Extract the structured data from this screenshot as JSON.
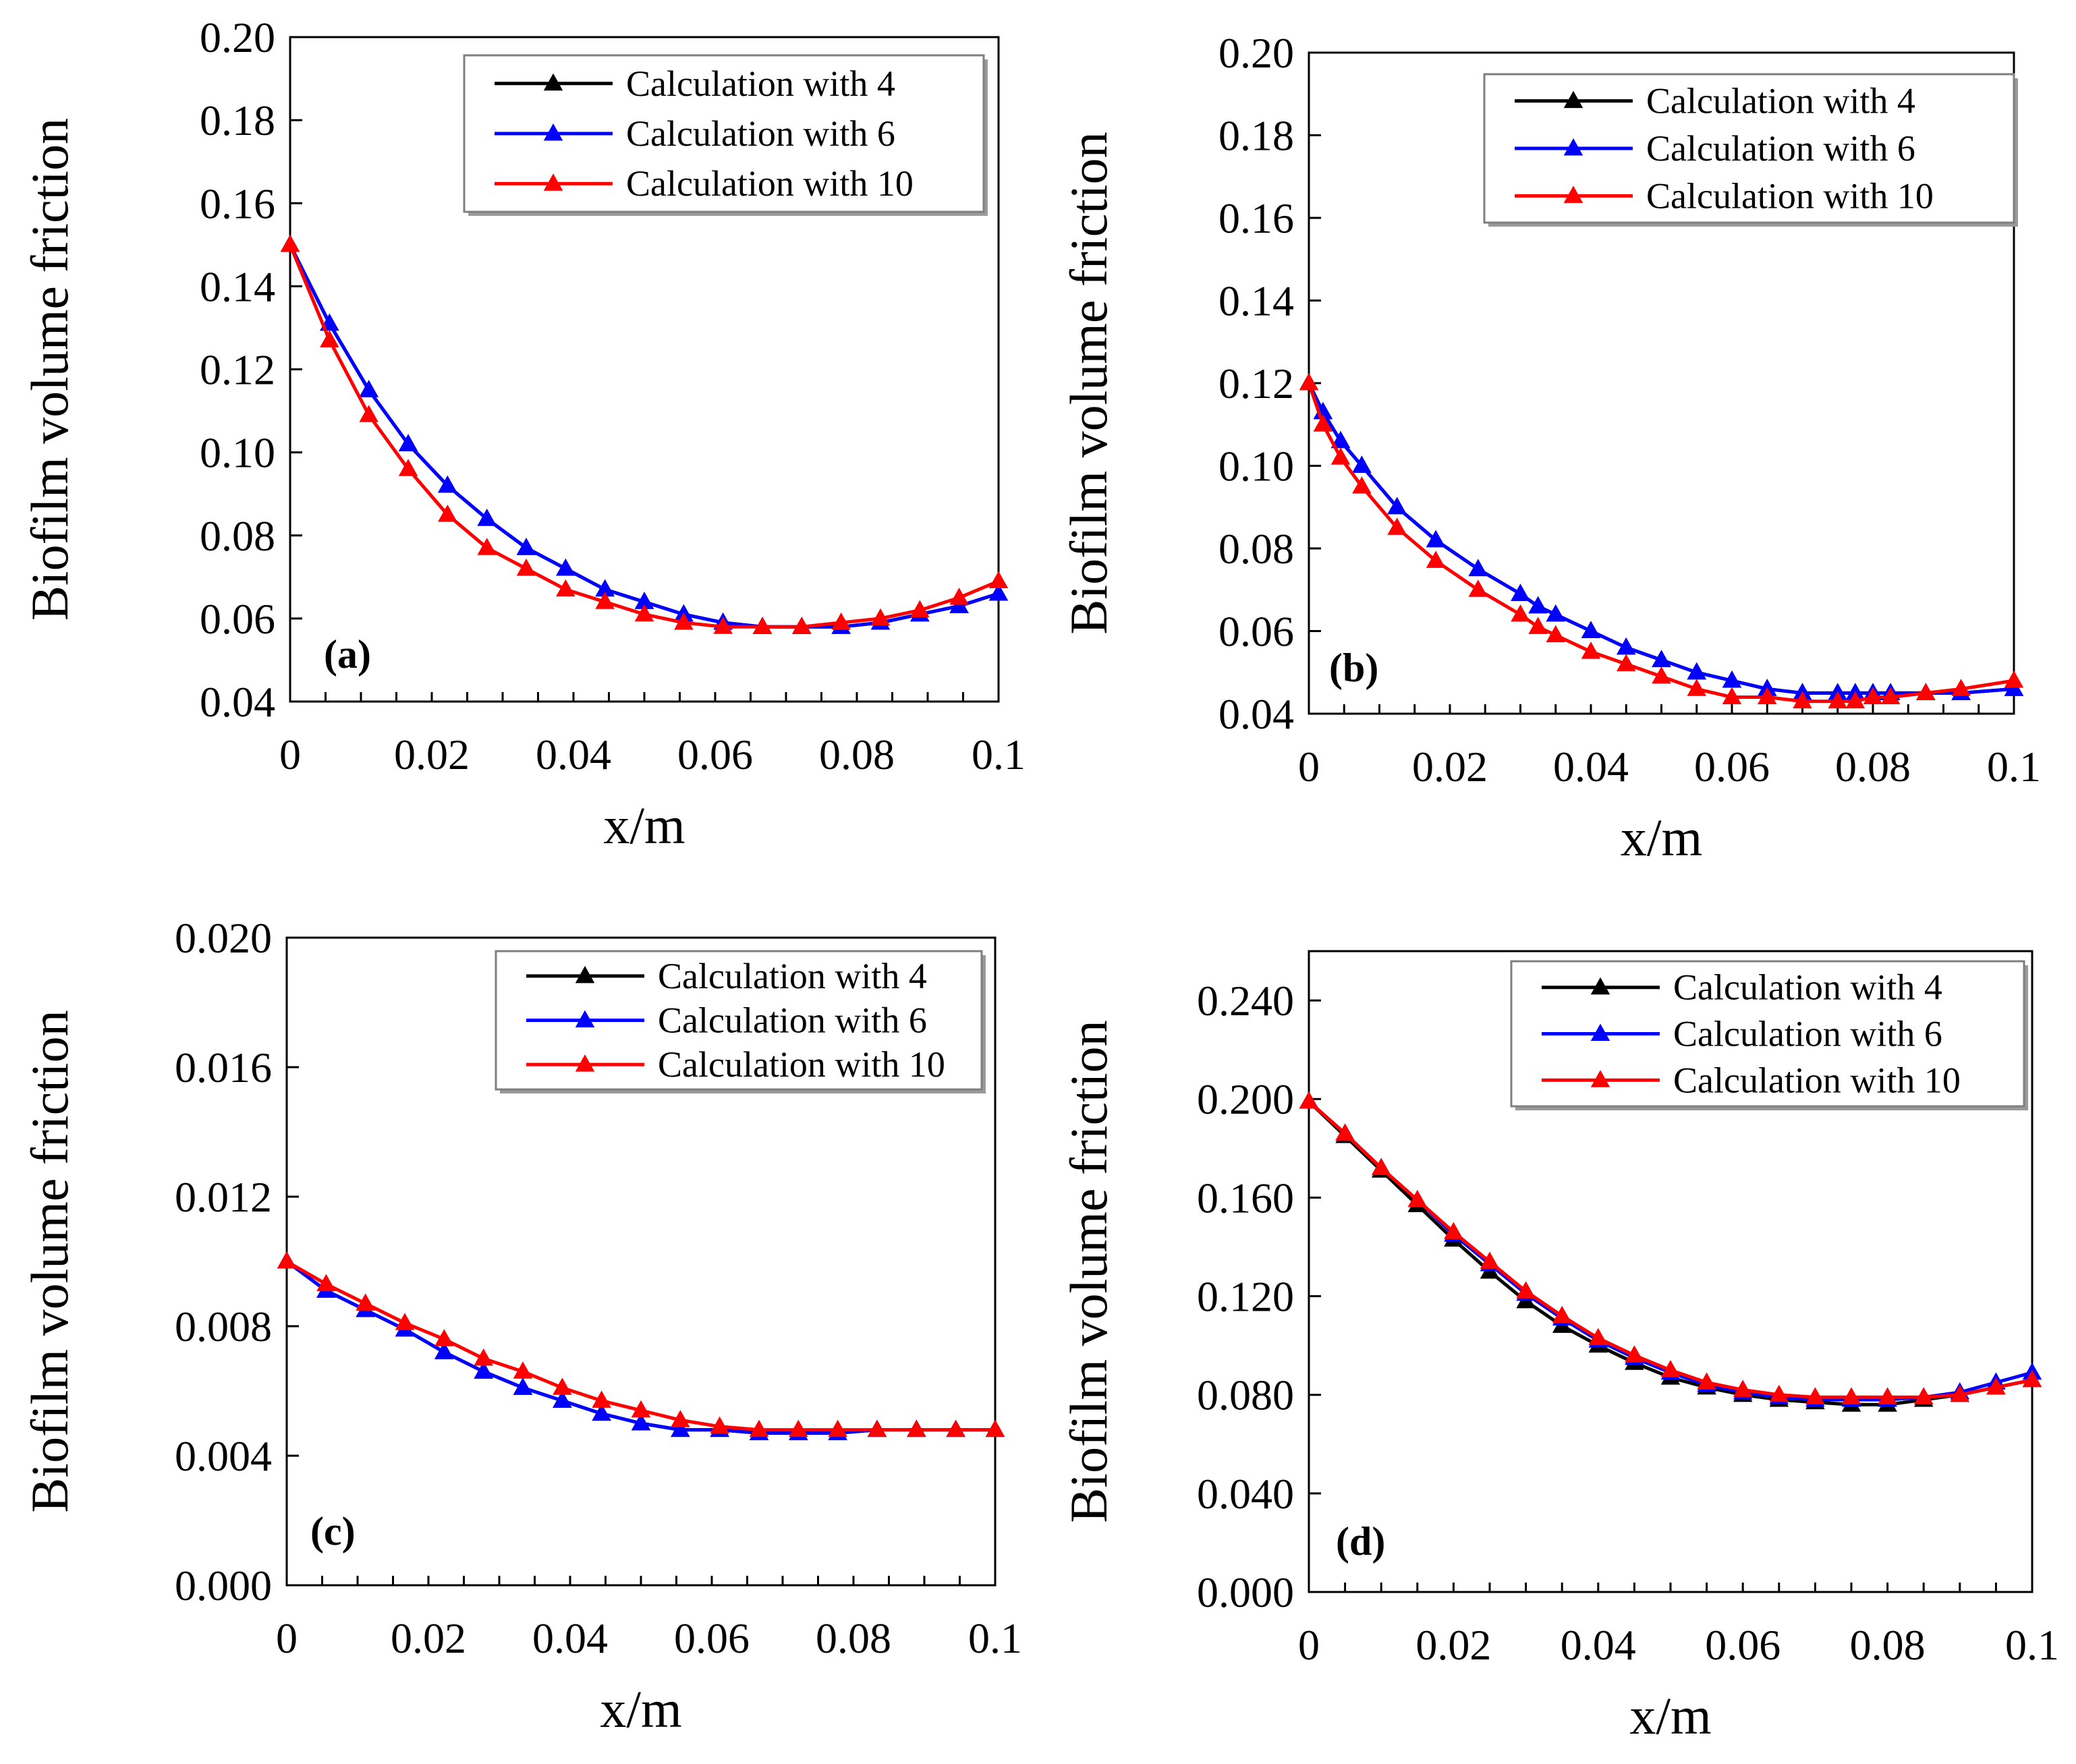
{
  "chart_data": [
    {
      "type": "line",
      "panel_label": "(a)",
      "xlabel": "x/m",
      "ylabel": "Biofilm volume friction",
      "xlim": [
        0,
        0.1
      ],
      "ylim": [
        0.04,
        0.2
      ],
      "xticks": [
        0,
        0.02,
        0.04,
        0.06,
        0.08,
        0.1
      ],
      "xtick_labels": [
        "0",
        "0.02",
        "0.04",
        "0.06",
        "0.08",
        "0.1"
      ],
      "yticks": [
        0.04,
        0.06,
        0.08,
        0.1,
        0.12,
        0.14,
        0.16,
        0.18,
        0.2
      ],
      "ytick_labels": [
        "0.04",
        "0.06",
        "0.08",
        "0.10",
        "0.12",
        "0.14",
        "0.16",
        "0.18",
        "0.20"
      ],
      "legend": "top-right",
      "series": [
        {
          "name": "Calculation with 4",
          "color": "#000000",
          "x": [
            0,
            0.00556,
            0.01111,
            0.01667,
            0.02222,
            0.02778,
            0.03333,
            0.03889,
            0.04444,
            0.05,
            0.05556,
            0.06111,
            0.06667,
            0.07222,
            0.07778,
            0.08333,
            0.08889,
            0.09444,
            0.1
          ],
          "y": [
            0.15,
            0.131,
            0.115,
            0.102,
            0.092,
            0.084,
            0.077,
            0.072,
            0.067,
            0.064,
            0.061,
            0.059,
            0.058,
            0.058,
            0.058,
            0.059,
            0.061,
            0.063,
            0.066
          ]
        },
        {
          "name": "Calculation with 6",
          "color": "#0000ff",
          "x": [
            0,
            0.00556,
            0.01111,
            0.01667,
            0.02222,
            0.02778,
            0.03333,
            0.03889,
            0.04444,
            0.05,
            0.05556,
            0.06111,
            0.06667,
            0.07222,
            0.07778,
            0.08333,
            0.08889,
            0.09444,
            0.1
          ],
          "y": [
            0.15,
            0.131,
            0.115,
            0.102,
            0.092,
            0.084,
            0.077,
            0.072,
            0.067,
            0.064,
            0.061,
            0.059,
            0.058,
            0.058,
            0.058,
            0.059,
            0.061,
            0.063,
            0.066
          ]
        },
        {
          "name": "Calculation with 10",
          "color": "#ff0000",
          "x": [
            0,
            0.00556,
            0.01111,
            0.01667,
            0.02222,
            0.02778,
            0.03333,
            0.03889,
            0.04444,
            0.05,
            0.05556,
            0.06111,
            0.06667,
            0.07222,
            0.07778,
            0.08333,
            0.08889,
            0.09444,
            0.1
          ],
          "y": [
            0.15,
            0.127,
            0.109,
            0.096,
            0.085,
            0.077,
            0.072,
            0.067,
            0.064,
            0.061,
            0.059,
            0.058,
            0.058,
            0.058,
            0.059,
            0.06,
            0.062,
            0.065,
            0.069
          ]
        }
      ]
    },
    {
      "type": "line",
      "panel_label": "(b)",
      "xlabel": "x/m",
      "ylabel": "Biofilm volume friction",
      "xlim": [
        0,
        0.1
      ],
      "ylim": [
        0.04,
        0.2
      ],
      "xticks": [
        0,
        0.02,
        0.04,
        0.06,
        0.08,
        0.1
      ],
      "xtick_labels": [
        "0",
        "0.02",
        "0.04",
        "0.06",
        "0.08",
        "0.1"
      ],
      "yticks": [
        0.04,
        0.06,
        0.08,
        0.1,
        0.12,
        0.14,
        0.16,
        0.18,
        0.2
      ],
      "ytick_labels": [
        "0.04",
        "0.06",
        "0.08",
        "0.10",
        "0.12",
        "0.14",
        "0.16",
        "0.18",
        "0.20"
      ],
      "legend": "top-right",
      "series": [
        {
          "name": "Calculation with 4",
          "color": "#000000",
          "x": [
            0,
            0.002,
            0.0045,
            0.0075,
            0.0125,
            0.018,
            0.024,
            0.03,
            0.0325,
            0.035,
            0.04,
            0.045,
            0.05,
            0.055,
            0.06,
            0.065,
            0.07,
            0.075,
            0.0775,
            0.08,
            0.0825,
            0.0875,
            0.0925,
            0.1
          ],
          "y": [
            0.12,
            0.113,
            0.106,
            0.1,
            0.09,
            0.082,
            0.075,
            0.069,
            0.066,
            0.064,
            0.06,
            0.056,
            0.053,
            0.05,
            0.048,
            0.046,
            0.045,
            0.045,
            0.045,
            0.045,
            0.045,
            0.045,
            0.045,
            0.046
          ]
        },
        {
          "name": "Calculation with 6",
          "color": "#0000ff",
          "x": [
            0,
            0.002,
            0.0045,
            0.0075,
            0.0125,
            0.018,
            0.024,
            0.03,
            0.0325,
            0.035,
            0.04,
            0.045,
            0.05,
            0.055,
            0.06,
            0.065,
            0.07,
            0.075,
            0.0775,
            0.08,
            0.0825,
            0.0875,
            0.0925,
            0.1
          ],
          "y": [
            0.12,
            0.113,
            0.106,
            0.1,
            0.09,
            0.082,
            0.075,
            0.069,
            0.066,
            0.064,
            0.06,
            0.056,
            0.053,
            0.05,
            0.048,
            0.046,
            0.045,
            0.045,
            0.045,
            0.045,
            0.045,
            0.045,
            0.045,
            0.046
          ]
        },
        {
          "name": "Calculation with 10",
          "color": "#ff0000",
          "x": [
            0,
            0.002,
            0.0045,
            0.0075,
            0.0125,
            0.018,
            0.024,
            0.03,
            0.0325,
            0.035,
            0.04,
            0.045,
            0.05,
            0.055,
            0.06,
            0.065,
            0.07,
            0.075,
            0.0775,
            0.08,
            0.0825,
            0.0875,
            0.0925,
            0.1
          ],
          "y": [
            0.12,
            0.11,
            0.102,
            0.095,
            0.085,
            0.077,
            0.07,
            0.064,
            0.061,
            0.059,
            0.055,
            0.052,
            0.049,
            0.046,
            0.044,
            0.044,
            0.043,
            0.043,
            0.043,
            0.044,
            0.044,
            0.045,
            0.046,
            0.048
          ]
        }
      ]
    },
    {
      "type": "line",
      "panel_label": "(c)",
      "xlabel": "x/m",
      "ylabel": "Biofilm volume friction",
      "xlim": [
        0,
        0.1
      ],
      "ylim": [
        0.0,
        0.02
      ],
      "xticks": [
        0,
        0.02,
        0.04,
        0.06,
        0.08,
        0.1
      ],
      "xtick_labels": [
        "0",
        "0.02",
        "0.04",
        "0.06",
        "0.08",
        "0.1"
      ],
      "yticks": [
        0.0,
        0.004,
        0.008,
        0.012,
        0.016,
        0.02
      ],
      "ytick_labels": [
        "0.000",
        "0.004",
        "0.008",
        "0.012",
        "0.016",
        "0.020"
      ],
      "legend": "top-right",
      "series": [
        {
          "name": "Calculation with 4",
          "color": "#000000",
          "x": [
            0,
            0.00556,
            0.01111,
            0.01667,
            0.02222,
            0.02778,
            0.03333,
            0.03889,
            0.04444,
            0.05,
            0.05556,
            0.06111,
            0.06667,
            0.07222,
            0.07778,
            0.08333,
            0.08889,
            0.09444,
            0.1
          ],
          "y": [
            0.01,
            0.0091,
            0.0085,
            0.0079,
            0.0072,
            0.0066,
            0.0061,
            0.0057,
            0.0053,
            0.005,
            0.0048,
            0.0048,
            0.0047,
            0.0047,
            0.0047,
            0.0048,
            0.0048,
            0.0048,
            0.0048
          ]
        },
        {
          "name": "Calculation with 6",
          "color": "#0000ff",
          "x": [
            0,
            0.00556,
            0.01111,
            0.01667,
            0.02222,
            0.02778,
            0.03333,
            0.03889,
            0.04444,
            0.05,
            0.05556,
            0.06111,
            0.06667,
            0.07222,
            0.07778,
            0.08333,
            0.08889,
            0.09444,
            0.1
          ],
          "y": [
            0.01,
            0.0091,
            0.0085,
            0.0079,
            0.0072,
            0.0066,
            0.0061,
            0.0057,
            0.0053,
            0.005,
            0.0048,
            0.0048,
            0.0047,
            0.0047,
            0.0047,
            0.0048,
            0.0048,
            0.0048,
            0.0048
          ]
        },
        {
          "name": "Calculation with 10",
          "color": "#ff0000",
          "x": [
            0,
            0.00556,
            0.01111,
            0.01667,
            0.02222,
            0.02778,
            0.03333,
            0.03889,
            0.04444,
            0.05,
            0.05556,
            0.06111,
            0.06667,
            0.07222,
            0.07778,
            0.08333,
            0.08889,
            0.09444,
            0.1
          ],
          "y": [
            0.01,
            0.0093,
            0.0087,
            0.0081,
            0.0076,
            0.007,
            0.0066,
            0.0061,
            0.0057,
            0.0054,
            0.0051,
            0.0049,
            0.0048,
            0.0048,
            0.0048,
            0.0048,
            0.0048,
            0.0048,
            0.0048
          ]
        }
      ]
    },
    {
      "type": "line",
      "panel_label": "(d)",
      "xlabel": "x/m",
      "ylabel": "Biofilm volume friction",
      "xlim": [
        0,
        0.1
      ],
      "ylim": [
        0.0,
        0.26
      ],
      "xticks": [
        0,
        0.02,
        0.04,
        0.06,
        0.08,
        0.1
      ],
      "xtick_labels": [
        "0",
        "0.02",
        "0.04",
        "0.06",
        "0.08",
        "0.1"
      ],
      "yticks": [
        0.0,
        0.04,
        0.08,
        0.12,
        0.16,
        0.2,
        0.24
      ],
      "ytick_labels": [
        "0.000",
        "0.040",
        "0.080",
        "0.120",
        "0.160",
        "0.200",
        "0.240"
      ],
      "legend": "top-right",
      "series": [
        {
          "name": "Calculation with 4",
          "color": "#000000",
          "x": [
            0,
            0.005,
            0.01,
            0.015,
            0.02,
            0.025,
            0.03,
            0.035,
            0.04,
            0.045,
            0.05,
            0.055,
            0.06,
            0.065,
            0.07,
            0.075,
            0.08,
            0.085,
            0.09,
            0.095,
            0.1
          ],
          "y": [
            0.199,
            0.185,
            0.171,
            0.157,
            0.143,
            0.13,
            0.118,
            0.108,
            0.1,
            0.093,
            0.087,
            0.083,
            0.08,
            0.078,
            0.077,
            0.076,
            0.076,
            0.078,
            0.08,
            0.083,
            0.086
          ]
        },
        {
          "name": "Calculation with 6",
          "color": "#0000ff",
          "x": [
            0,
            0.005,
            0.01,
            0.015,
            0.02,
            0.025,
            0.03,
            0.035,
            0.04,
            0.045,
            0.05,
            0.055,
            0.06,
            0.065,
            0.07,
            0.075,
            0.08,
            0.085,
            0.09,
            0.095,
            0.1
          ],
          "y": [
            0.199,
            0.186,
            0.172,
            0.159,
            0.145,
            0.133,
            0.121,
            0.111,
            0.102,
            0.095,
            0.089,
            0.084,
            0.081,
            0.079,
            0.078,
            0.078,
            0.078,
            0.079,
            0.081,
            0.085,
            0.089
          ]
        },
        {
          "name": "Calculation with 10",
          "color": "#ff0000",
          "x": [
            0,
            0.005,
            0.01,
            0.015,
            0.02,
            0.025,
            0.03,
            0.035,
            0.04,
            0.045,
            0.05,
            0.055,
            0.06,
            0.065,
            0.07,
            0.075,
            0.08,
            0.085,
            0.09,
            0.095,
            0.1
          ],
          "y": [
            0.199,
            0.186,
            0.172,
            0.159,
            0.146,
            0.134,
            0.122,
            0.112,
            0.103,
            0.096,
            0.09,
            0.085,
            0.082,
            0.08,
            0.079,
            0.079,
            0.079,
            0.079,
            0.08,
            0.083,
            0.086
          ]
        }
      ]
    }
  ]
}
